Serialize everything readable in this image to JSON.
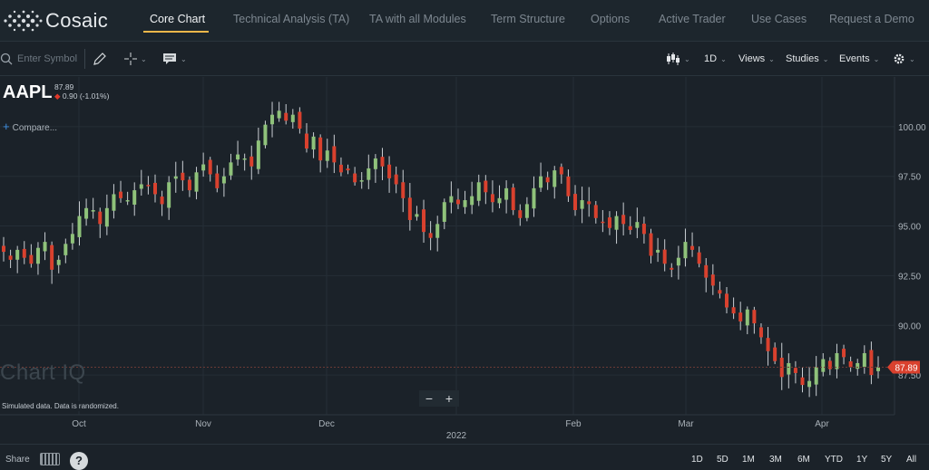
{
  "brand": {
    "name": "Cosaic"
  },
  "nav": {
    "tabs": [
      {
        "label": "Core Chart",
        "active": true
      },
      {
        "label": "Technical Analysis (TA)",
        "active": false
      },
      {
        "label": "TA with all Modules",
        "active": false
      },
      {
        "label": "Term Structure",
        "active": false
      },
      {
        "label": "Options",
        "active": false
      },
      {
        "label": "Active Trader",
        "active": false
      },
      {
        "label": "Use Cases",
        "active": false
      },
      {
        "label": "Request a Demo",
        "active": false
      }
    ]
  },
  "toolbar": {
    "search_placeholder": "Enter Symbol",
    "periodicity": "1D",
    "views": "Views",
    "studies": "Studies",
    "events": "Events",
    "icons": [
      "search-icon",
      "pencil-draw-icon",
      "crosshair-icon",
      "comment-icon",
      "candle-type-icon",
      "gear-icon"
    ]
  },
  "symbol": {
    "ticker": "AAPL",
    "price": "87.89",
    "change": "0.90 (-1.01%)",
    "compare_label": "Compare..."
  },
  "chart": {
    "watermark": "Chart IQ",
    "sim_note": "Simulated data.  Data is randomized.",
    "zoom_out": "−",
    "zoom_in": "+",
    "current_price_label": "87.89",
    "colors": {
      "up": "#8fc27a",
      "down": "#d9412e",
      "background": "#1b2229",
      "grid": "#252e36"
    }
  },
  "chart_data": {
    "type": "candlestick",
    "x_labels": [
      "Oct",
      "Nov",
      "Dec",
      "2022",
      "Feb",
      "Mar",
      "Apr"
    ],
    "y_ticks": [
      "100.00",
      "97.50",
      "95.00",
      "92.50",
      "90.00",
      "87.50"
    ],
    "ylim": [
      85.5,
      102.5
    ],
    "last_price": 87.89,
    "closes": [
      93.7,
      93.3,
      93.8,
      93.4,
      93.1,
      93.9,
      94.2,
      92.8,
      93.3,
      94.1,
      94.6,
      95.5,
      95.9,
      95.8,
      95.1,
      95.9,
      96.6,
      96.4,
      96.3,
      96.8,
      97.1,
      97.0,
      96.6,
      96.1,
      97.2,
      97.5,
      97.3,
      96.8,
      97.7,
      98.1,
      97.6,
      96.9,
      97.5,
      98.2,
      98.6,
      98.4,
      98.0,
      99.3,
      100.1,
      100.6,
      100.8,
      100.3,
      100.6,
      99.9,
      98.9,
      99.5,
      98.3,
      98.8,
      98.2,
      97.7,
      97.8,
      97.2,
      97.3,
      97.9,
      98.4,
      98.0,
      97.4,
      97.1,
      96.4,
      95.3,
      95.6,
      94.7,
      94.4,
      95.1,
      96.2,
      96.5,
      96.1,
      96.3,
      96.5,
      97.2,
      96.7,
      96.2,
      96.4,
      96.9,
      95.8,
      95.4,
      96.1,
      96.9,
      97.5,
      97.2,
      97.8,
      97.6,
      96.5,
      95.8,
      96.3,
      96.1,
      95.4,
      95.2,
      94.9,
      95.5,
      95.1,
      94.8,
      95.2,
      94.6,
      93.5,
      93.8,
      93.1,
      92.8,
      93.4,
      94.2,
      93.8,
      93.1,
      92.4,
      92.0,
      91.6,
      90.9,
      90.6,
      90.2,
      90.8,
      90.1,
      89.4,
      88.7,
      88.2,
      87.4,
      88.1,
      87.6,
      87.0,
      87.2,
      87.9,
      88.3,
      87.8,
      88.6,
      88.4,
      87.9,
      88.1,
      88.6,
      87.5,
      87.89
    ]
  },
  "bottom": {
    "share": "Share",
    "help": "?",
    "periods": [
      "1D",
      "5D",
      "1M",
      "3M",
      "6M",
      "YTD",
      "1Y",
      "5Y",
      "All"
    ]
  }
}
